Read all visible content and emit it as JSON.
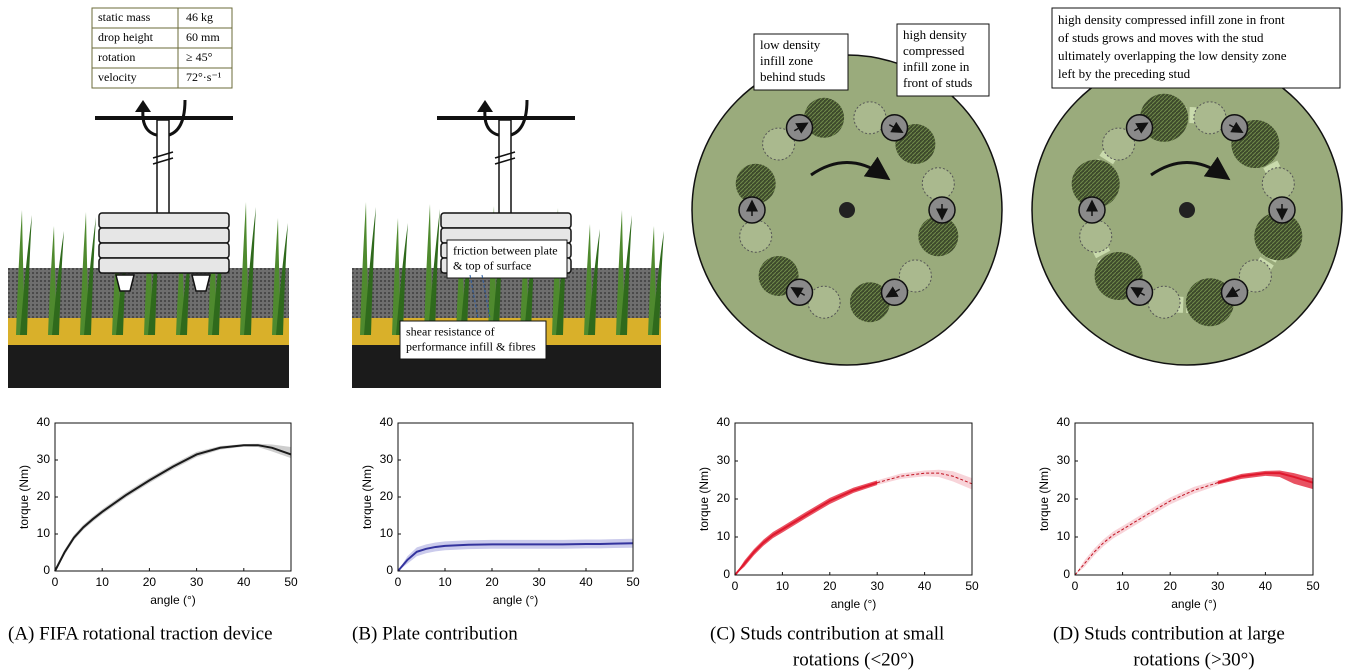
{
  "illustrations": {
    "A": {
      "table": [
        [
          "static mass",
          "46 kg"
        ],
        [
          "drop height",
          "60 mm"
        ],
        [
          "rotation",
          "≥ 45°"
        ],
        [
          "velocity",
          "72°·s⁻¹"
        ]
      ]
    },
    "B": {
      "labels": [
        [
          "friction between plate",
          "& top of surface"
        ],
        [
          "shear resistance of",
          "performance infill & fibres"
        ]
      ]
    },
    "C": {
      "labels": [
        [
          "low density",
          "infill zone",
          "behind studs"
        ],
        [
          "high density",
          "compressed",
          "infill zone in",
          "front of studs"
        ]
      ]
    },
    "D": {
      "labels": [
        [
          "high density compressed infill zone in front",
          "of studs grows and moves with the stud",
          "ultimately overlapping the low density zone",
          "left by the preceding stud"
        ]
      ]
    }
  },
  "chart_data": [
    {
      "type": "line",
      "xlabel": "angle (°)",
      "ylabel": "torque (Nm)",
      "xlim": [
        0,
        50
      ],
      "ylim": [
        0,
        40
      ],
      "xticks": [
        0,
        10,
        20,
        30,
        40,
        50
      ],
      "yticks": [
        0,
        10,
        20,
        30,
        40
      ],
      "x": [
        0,
        2,
        4,
        6,
        8,
        10,
        15,
        20,
        25,
        30,
        35,
        40,
        43,
        46,
        50
      ],
      "series": [
        {
          "color": "#1a1a1a",
          "band_color": "#bdbdbd",
          "dashed": false,
          "values": [
            0,
            5,
            9,
            11.8,
            14,
            16,
            20.5,
            24.5,
            28.2,
            31.5,
            33.3,
            34,
            34,
            33.3,
            31.5
          ],
          "lower": [
            0,
            4.3,
            8.3,
            11.1,
            13.3,
            15.3,
            19.8,
            23.8,
            27.5,
            30.8,
            32.8,
            33.6,
            33.5,
            32.3,
            30.5
          ],
          "upper": [
            0,
            5.7,
            9.7,
            12.5,
            14.7,
            16.7,
            21.2,
            25.2,
            28.9,
            32.2,
            33.8,
            34.3,
            34.4,
            34.2,
            33.5
          ]
        }
      ],
      "caption": [
        "(A) FIFA rotational traction device"
      ]
    },
    {
      "type": "line",
      "xlabel": "angle (°)",
      "ylabel": "torque (Nm)",
      "xlim": [
        0,
        50
      ],
      "ylim": [
        0,
        40
      ],
      "xticks": [
        0,
        10,
        20,
        30,
        40,
        50
      ],
      "yticks": [
        0,
        10,
        20,
        30,
        40
      ],
      "x": [
        0,
        2,
        4,
        6,
        8,
        10,
        15,
        20,
        25,
        30,
        35,
        40,
        43,
        46,
        50
      ],
      "series": [
        {
          "color": "#34349e",
          "band_color": "#b9b9e6",
          "dashed": false,
          "values": [
            0,
            3,
            5.2,
            6,
            6.5,
            6.8,
            7.1,
            7.2,
            7.2,
            7.2,
            7.2,
            7.3,
            7.3,
            7.4,
            7.5
          ],
          "lower": [
            0,
            2,
            4,
            4.8,
            5.3,
            5.6,
            5.9,
            6,
            6,
            6,
            6,
            6.1,
            6.1,
            6.2,
            6.3
          ],
          "upper": [
            0,
            4,
            6.4,
            7.2,
            7.7,
            8,
            8.3,
            8.4,
            8.4,
            8.4,
            8.4,
            8.5,
            8.5,
            8.6,
            8.7
          ]
        }
      ],
      "caption": [
        "(B) Plate contribution"
      ]
    },
    {
      "type": "line",
      "xlabel": "angle (°)",
      "ylabel": "torque (Nm)",
      "xlim": [
        0,
        50
      ],
      "ylim": [
        0,
        40
      ],
      "xticks": [
        0,
        10,
        20,
        30,
        40,
        50
      ],
      "yticks": [
        0,
        10,
        20,
        30,
        40
      ],
      "x": [
        0,
        2,
        4,
        6,
        8,
        10,
        15,
        20,
        25,
        30,
        35,
        40,
        43,
        46,
        50
      ],
      "series": [
        {
          "color": "#e0182d",
          "band_color": "#e0182d",
          "dashed": false,
          "values": [
            0,
            3,
            6,
            8.5,
            10.5,
            12,
            15.8,
            19.5,
            22.3,
            24.3,
            null,
            null,
            null,
            null,
            null
          ],
          "lower": [
            0,
            2.2,
            5.2,
            7.7,
            9.7,
            11.2,
            15,
            18.7,
            21.6,
            23.7,
            null,
            null,
            null,
            null,
            null
          ],
          "upper": [
            0,
            3.8,
            6.8,
            9.3,
            11.3,
            12.8,
            16.6,
            20.3,
            23,
            24.9,
            null,
            null,
            null,
            null,
            null
          ]
        },
        {
          "color": "#e0182d",
          "band_color": "#f6c6cc",
          "dashed": true,
          "values": [
            null,
            null,
            null,
            null,
            null,
            null,
            null,
            null,
            null,
            24.3,
            26,
            26.8,
            26.8,
            26,
            24
          ],
          "lower": [
            null,
            null,
            null,
            null,
            null,
            null,
            null,
            null,
            null,
            23.7,
            25.3,
            26,
            25.8,
            24.6,
            22.5
          ],
          "upper": [
            null,
            null,
            null,
            null,
            null,
            null,
            null,
            null,
            null,
            24.9,
            26.7,
            27.5,
            27.7,
            27.3,
            25.5
          ]
        }
      ],
      "caption": [
        "(C) Studs contribution at small",
        "rotations (<20°)"
      ]
    },
    {
      "type": "line",
      "xlabel": "angle (°)",
      "ylabel": "torque (Nm)",
      "xlim": [
        0,
        50
      ],
      "ylim": [
        0,
        40
      ],
      "xticks": [
        0,
        10,
        20,
        30,
        40,
        50
      ],
      "yticks": [
        0,
        10,
        20,
        30,
        40
      ],
      "x": [
        0,
        2,
        4,
        6,
        8,
        10,
        15,
        20,
        25,
        30,
        35,
        40,
        43,
        46,
        50
      ],
      "series": [
        {
          "color": "#e0182d",
          "band_color": "#f6c6cc",
          "dashed": true,
          "values": [
            0,
            3,
            6,
            8.5,
            10.5,
            12,
            15.8,
            19.5,
            22.3,
            24.3,
            null,
            null,
            null,
            null,
            null
          ],
          "lower": [
            0,
            2.1,
            5.1,
            7.6,
            9.6,
            11.1,
            14.9,
            18.6,
            21.4,
            23.6,
            null,
            null,
            null,
            null,
            null
          ],
          "upper": [
            0,
            3.9,
            6.9,
            9.4,
            11.4,
            12.9,
            16.7,
            20.4,
            23.2,
            25,
            null,
            null,
            null,
            null,
            null
          ]
        },
        {
          "color": "#e0182d",
          "band_color": "#e0182d",
          "dashed": false,
          "values": [
            null,
            null,
            null,
            null,
            null,
            null,
            null,
            null,
            null,
            24.3,
            26,
            26.8,
            26.8,
            25.8,
            24.3
          ],
          "lower": [
            null,
            null,
            null,
            null,
            null,
            null,
            null,
            null,
            null,
            23.8,
            25.3,
            26.1,
            25.8,
            24,
            22.6
          ],
          "upper": [
            null,
            null,
            null,
            null,
            null,
            null,
            null,
            null,
            null,
            24.8,
            26.6,
            27.4,
            27.5,
            26.8,
            25.5
          ]
        }
      ],
      "caption": [
        "(D) Studs contribution at large",
        "rotations (>30°)"
      ]
    }
  ]
}
